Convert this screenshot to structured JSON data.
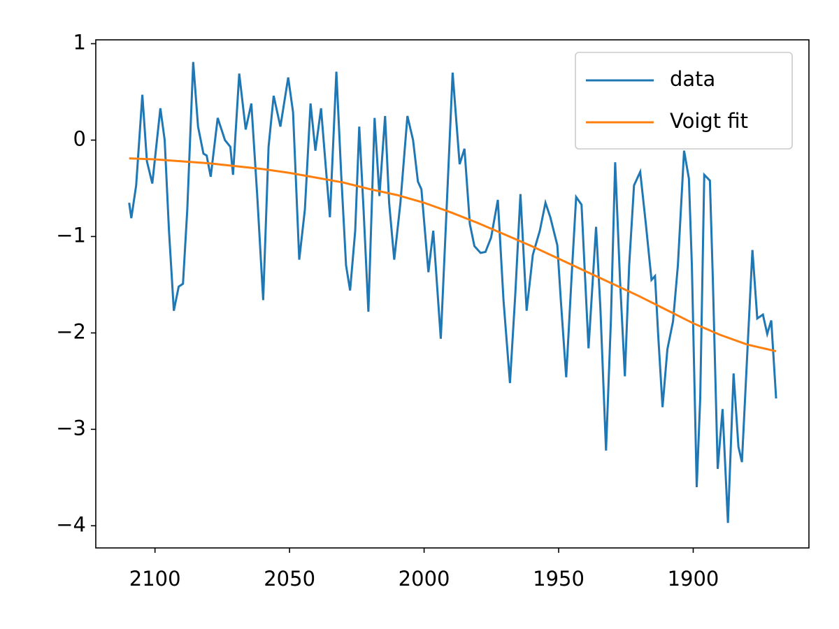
{
  "chart_data": {
    "type": "line",
    "xlim": [
      2122,
      1857
    ],
    "ylim": [
      -4.23,
      1.04
    ],
    "xticks": [
      2100,
      2050,
      2000,
      1950,
      1900
    ],
    "yticks": [
      {
        "value": -4,
        "label": "−4"
      },
      {
        "value": -3,
        "label": "−3"
      },
      {
        "value": -2,
        "label": "−2"
      },
      {
        "value": -1,
        "label": "−1"
      },
      0,
      1
    ],
    "legend": "upper right",
    "series": [
      {
        "name": "data",
        "color": "#1f77b4",
        "x": [
          2109.6,
          2108.8,
          2107,
          2104.7,
          2103,
          2101,
          2098,
          2096.4,
          2094.8,
          2093,
          2091.2,
          2089.6,
          2088,
          2085.8,
          2084,
          2082,
          2080.8,
          2079.3,
          2076.7,
          2074,
          2072,
          2071,
          2068.7,
          2066.3,
          2064.2,
          2062,
          2059.8,
          2057.8,
          2055.9,
          2053.4,
          2050.5,
          2048.7,
          2046.4,
          2044.3,
          2042.2,
          2040.4,
          2038.3,
          2036.5,
          2035,
          2032.6,
          2030.8,
          2029,
          2027.5,
          2025.6,
          2024.1,
          2022.5,
          2020.7,
          2018.4,
          2016.6,
          2014.5,
          2013,
          2011.1,
          2008.8,
          2006.2,
          2004.1,
          2002.3,
          2001,
          1998.4,
          1996.6,
          1993.8,
          1992,
          1989.4,
          1986.8,
          1985,
          1983,
          1981.3,
          1979,
          1977.2,
          1975.1,
          1972.6,
          1970.5,
          1968.1,
          1966.1,
          1964.2,
          1961.9,
          1959.6,
          1957,
          1954.9,
          1953.1,
          1950.5,
          1949.2,
          1947.2,
          1945.1,
          1943.5,
          1941.5,
          1938.9,
          1936.1,
          1934.5,
          1932.4,
          1930.6,
          1929,
          1927.2,
          1925.4,
          1923.8,
          1922,
          1919.7,
          1917.6,
          1915.5,
          1914.2,
          1913,
          1911.4,
          1909.6,
          1907.5,
          1905.7,
          1903.4,
          1901.6,
          1900.5,
          1898.7,
          1897.4,
          1895.9,
          1893.8,
          1892.7,
          1890.9,
          1889.1,
          1887.1,
          1885,
          1883.2,
          1881.9,
          1880.1,
          1878,
          1876.2,
          1874.1,
          1872.5,
          1871,
          1869.2
        ],
        "values": [
          -0.65,
          -0.81,
          -0.47,
          0.47,
          -0.22,
          -0.45,
          0.33,
          0,
          -0.94,
          -1.77,
          -1.52,
          -1.49,
          -0.72,
          0.81,
          0.14,
          -0.14,
          -0.16,
          -0.38,
          0.23,
          0,
          -0.07,
          -0.36,
          0.69,
          0.11,
          0.38,
          -0.58,
          -1.66,
          -0.07,
          0.46,
          0.14,
          0.65,
          0.29,
          -1.24,
          -0.72,
          0.38,
          -0.11,
          0.33,
          -0.29,
          -0.8,
          0.71,
          -0.36,
          -1.3,
          -1.56,
          -0.94,
          0.14,
          -0.72,
          -1.78,
          0.23,
          -0.58,
          0.25,
          -0.65,
          -1.24,
          -0.65,
          0.25,
          0,
          -0.43,
          -0.51,
          -1.37,
          -0.94,
          -2.06,
          -0.94,
          0.7,
          -0.25,
          -0.09,
          -0.87,
          -1.1,
          -1.17,
          -1.16,
          -1.01,
          -0.62,
          -1.66,
          -2.52,
          -1.59,
          -0.56,
          -1.77,
          -1.19,
          -0.94,
          -0.65,
          -0.8,
          -1.09,
          -1.66,
          -2.46,
          -1.37,
          -0.59,
          -0.67,
          -2.16,
          -0.9,
          -1.74,
          -3.22,
          -1.88,
          -0.23,
          -1.45,
          -2.45,
          -1.3,
          -0.47,
          -0.33,
          -0.87,
          -1.45,
          -1.41,
          -2.03,
          -2.77,
          -2.17,
          -1.88,
          -1.3,
          -0.11,
          -0.4,
          -1.3,
          -3.6,
          -2.68,
          -0.36,
          -0.42,
          -1.45,
          -3.41,
          -2.79,
          -3.97,
          -2.42,
          -3.18,
          -3.34,
          -2.32,
          -1.14,
          -1.85,
          -1.81,
          -2.01,
          -1.87,
          -2.68
        ]
      },
      {
        "name": "Voigt fit",
        "color": "#ff7f0e",
        "x": [
          2109.6,
          2100,
          2090,
          2080,
          2070,
          2060,
          2050,
          2040,
          2030,
          2020,
          2010,
          2000,
          1990,
          1980,
          1970,
          1960,
          1950,
          1940,
          1930,
          1920,
          1910,
          1900,
          1890,
          1880,
          1869.2
        ],
        "values": [
          -0.19,
          -0.2,
          -0.22,
          -0.24,
          -0.27,
          -0.3,
          -0.34,
          -0.39,
          -0.44,
          -0.51,
          -0.57,
          -0.65,
          -0.75,
          -0.86,
          -0.98,
          -1.1,
          -1.23,
          -1.36,
          -1.49,
          -1.62,
          -1.76,
          -1.9,
          -2.02,
          -2.12,
          -2.19
        ]
      }
    ]
  }
}
